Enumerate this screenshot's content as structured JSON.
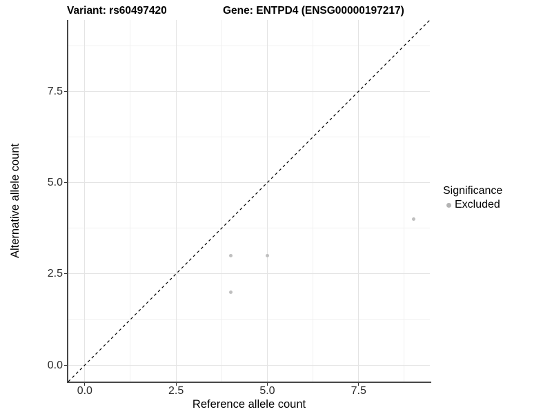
{
  "chart_data": {
    "type": "scatter",
    "titles": {
      "left": "Variant: rs60497420",
      "right": "Gene: ENTPD4 (ENSG00000197217)"
    },
    "xlabel": "Reference allele count",
    "ylabel": "Alternative allele count",
    "xlim": [
      -0.45,
      9.45
    ],
    "ylim": [
      -0.45,
      9.45
    ],
    "x_ticks": {
      "values": [
        0,
        2.5,
        5,
        7.5
      ],
      "labels": [
        "0.0",
        "2.5",
        "5.0",
        "7.5"
      ]
    },
    "y_ticks": {
      "values": [
        0,
        2.5,
        5,
        7.5
      ],
      "labels": [
        "0.0",
        "2.5",
        "5.0",
        "7.5"
      ]
    },
    "x_minor": [
      1.25,
      3.75,
      6.25,
      8.75
    ],
    "y_minor": [
      1.25,
      3.75,
      6.25,
      8.75
    ],
    "grid": true,
    "identity_line": {
      "style": "dashed",
      "color": "#000000",
      "from": [
        -0.45,
        -0.45
      ],
      "to": [
        9.45,
        9.45
      ]
    },
    "series": [
      {
        "name": "Excluded",
        "color": "#bfbfbf",
        "points": [
          [
            4,
            2
          ],
          [
            4,
            3
          ],
          [
            5,
            3
          ],
          [
            9,
            4
          ]
        ]
      }
    ],
    "legend": {
      "title": "Significance",
      "position": "right",
      "items": [
        {
          "label": "Excluded",
          "color": "#b3b3b3"
        }
      ]
    },
    "colors": {
      "grid_major": "#e4e4e4",
      "grid_minor": "#f0f0f0",
      "axis_line": "#474747",
      "tick": "#333333",
      "background": "#ffffff"
    }
  }
}
